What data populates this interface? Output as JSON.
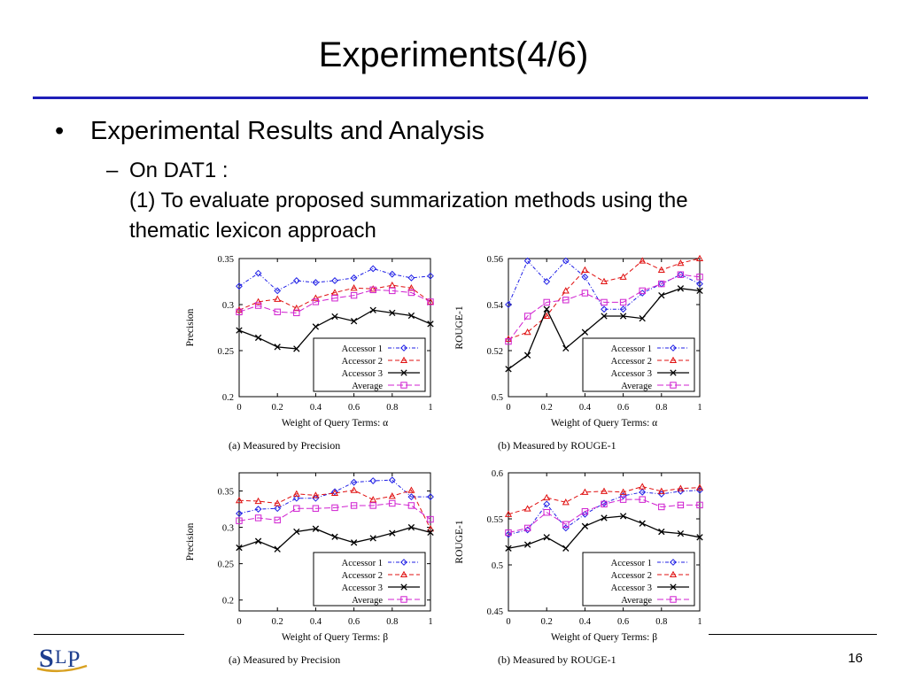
{
  "slide": {
    "title": "Experiments(4/6)",
    "bullet": "Experimental Results and Analysis",
    "sub_line1": "On DAT1 :",
    "sub_line2": "(1) To evaluate proposed summarization methods using the",
    "sub_line3": "thematic lexicon approach",
    "page_number": "16",
    "logo_text": "SLP"
  },
  "colors": {
    "accent_rule": "#1f1fb8",
    "accessor1": "#1f1fe6",
    "accessor2": "#e01010",
    "accessor3": "#000000",
    "average": "#d020d0"
  },
  "chart_data": [
    {
      "type": "line",
      "caption": "(a) Measured by Precision",
      "xlabel": "Weight of Query Terms: α",
      "ylabel": "Precision",
      "x": [
        0,
        0.1,
        0.2,
        0.3,
        0.4,
        0.5,
        0.6,
        0.7,
        0.8,
        0.9,
        1
      ],
      "xticks": [
        "0",
        "0.2",
        "0.4",
        "0.6",
        "0.8",
        "1"
      ],
      "yticks": [
        "0.2",
        "0.25",
        "0.3",
        "0.35"
      ],
      "ylim": [
        0.2,
        0.35
      ],
      "legend": "bottom-right",
      "series": [
        {
          "name": "Accessor 1",
          "values": [
            0.32,
            0.334,
            0.315,
            0.326,
            0.324,
            0.326,
            0.329,
            0.339,
            0.333,
            0.329,
            0.331
          ]
        },
        {
          "name": "Accessor 2",
          "values": [
            0.294,
            0.303,
            0.306,
            0.296,
            0.307,
            0.313,
            0.318,
            0.317,
            0.321,
            0.318,
            0.303
          ]
        },
        {
          "name": "Accessor 3",
          "values": [
            0.272,
            0.264,
            0.254,
            0.252,
            0.276,
            0.287,
            0.282,
            0.294,
            0.291,
            0.288,
            0.279
          ]
        },
        {
          "name": "Average",
          "values": [
            0.292,
            0.299,
            0.292,
            0.291,
            0.303,
            0.307,
            0.31,
            0.316,
            0.315,
            0.313,
            0.303
          ]
        }
      ]
    },
    {
      "type": "line",
      "caption": "(b) Measured by ROUGE-1",
      "xlabel": "Weight of Query Terms: α",
      "ylabel": "ROUGE-1",
      "x": [
        0,
        0.1,
        0.2,
        0.3,
        0.4,
        0.5,
        0.6,
        0.7,
        0.8,
        0.9,
        1
      ],
      "xticks": [
        "0",
        "0.2",
        "0.4",
        "0.6",
        "0.8",
        "1"
      ],
      "yticks": [
        "0.5",
        "0.52",
        "0.54",
        "0.56"
      ],
      "ylim": [
        0.5,
        0.56
      ],
      "legend": "bottom-right",
      "series": [
        {
          "name": "Accessor 1",
          "values": [
            0.54,
            0.559,
            0.55,
            0.559,
            0.552,
            0.538,
            0.538,
            0.545,
            0.549,
            0.553,
            0.549
          ]
        },
        {
          "name": "Accessor 2",
          "values": [
            0.525,
            0.528,
            0.535,
            0.546,
            0.555,
            0.55,
            0.552,
            0.559,
            0.555,
            0.558,
            0.56
          ]
        },
        {
          "name": "Accessor 3",
          "values": [
            0.512,
            0.518,
            0.538,
            0.521,
            0.528,
            0.535,
            0.535,
            0.534,
            0.544,
            0.547,
            0.546
          ]
        },
        {
          "name": "Average",
          "values": [
            0.524,
            0.535,
            0.541,
            0.542,
            0.545,
            0.541,
            0.541,
            0.546,
            0.549,
            0.553,
            0.552
          ]
        }
      ]
    },
    {
      "type": "line",
      "caption": "(a) Measured by Precision",
      "xlabel": "Weight of Query Terms: β",
      "ylabel": "Precision",
      "x": [
        0,
        0.1,
        0.2,
        0.3,
        0.4,
        0.5,
        0.6,
        0.7,
        0.8,
        0.9,
        1
      ],
      "xticks": [
        "0",
        "0.2",
        "0.4",
        "0.6",
        "0.8",
        "1"
      ],
      "yticks": [
        "0.2",
        "0.25",
        "0.3",
        "0.35"
      ],
      "ylim": [
        0.185,
        0.375
      ],
      "legend": "bottom-right",
      "series": [
        {
          "name": "Accessor 1",
          "values": [
            0.319,
            0.325,
            0.326,
            0.34,
            0.34,
            0.349,
            0.362,
            0.364,
            0.365,
            0.342,
            0.342
          ]
        },
        {
          "name": "Accessor 2",
          "values": [
            0.337,
            0.336,
            0.333,
            0.346,
            0.344,
            0.347,
            0.351,
            0.338,
            0.343,
            0.351,
            0.298
          ]
        },
        {
          "name": "Accessor 3",
          "values": [
            0.272,
            0.281,
            0.27,
            0.294,
            0.298,
            0.287,
            0.279,
            0.285,
            0.292,
            0.3,
            0.293
          ]
        },
        {
          "name": "Average",
          "values": [
            0.309,
            0.313,
            0.31,
            0.326,
            0.326,
            0.327,
            0.33,
            0.33,
            0.333,
            0.33,
            0.311
          ]
        }
      ]
    },
    {
      "type": "line",
      "caption": "(b) Measured by ROUGE-1",
      "xlabel": "Weight of Query Terms: β",
      "ylabel": "ROUGE-1",
      "x": [
        0,
        0.1,
        0.2,
        0.3,
        0.4,
        0.5,
        0.6,
        0.7,
        0.8,
        0.9,
        1
      ],
      "xticks": [
        "0",
        "0.2",
        "0.4",
        "0.6",
        "0.8",
        "1"
      ],
      "yticks": [
        "0.45",
        "0.5",
        "0.55",
        "0.6"
      ],
      "ylim": [
        0.45,
        0.6
      ],
      "legend": "bottom-right",
      "series": [
        {
          "name": "Accessor 1",
          "values": [
            0.533,
            0.538,
            0.566,
            0.54,
            0.555,
            0.567,
            0.575,
            0.579,
            0.577,
            0.58,
            0.581
          ]
        },
        {
          "name": "Accessor 2",
          "values": [
            0.555,
            0.561,
            0.573,
            0.568,
            0.579,
            0.58,
            0.579,
            0.585,
            0.58,
            0.583,
            0.584
          ]
        },
        {
          "name": "Accessor 3",
          "values": [
            0.518,
            0.522,
            0.53,
            0.518,
            0.542,
            0.551,
            0.553,
            0.545,
            0.536,
            0.534,
            0.53
          ]
        },
        {
          "name": "Average",
          "values": [
            0.535,
            0.54,
            0.557,
            0.544,
            0.558,
            0.566,
            0.571,
            0.571,
            0.563,
            0.565,
            0.565
          ]
        }
      ]
    }
  ]
}
